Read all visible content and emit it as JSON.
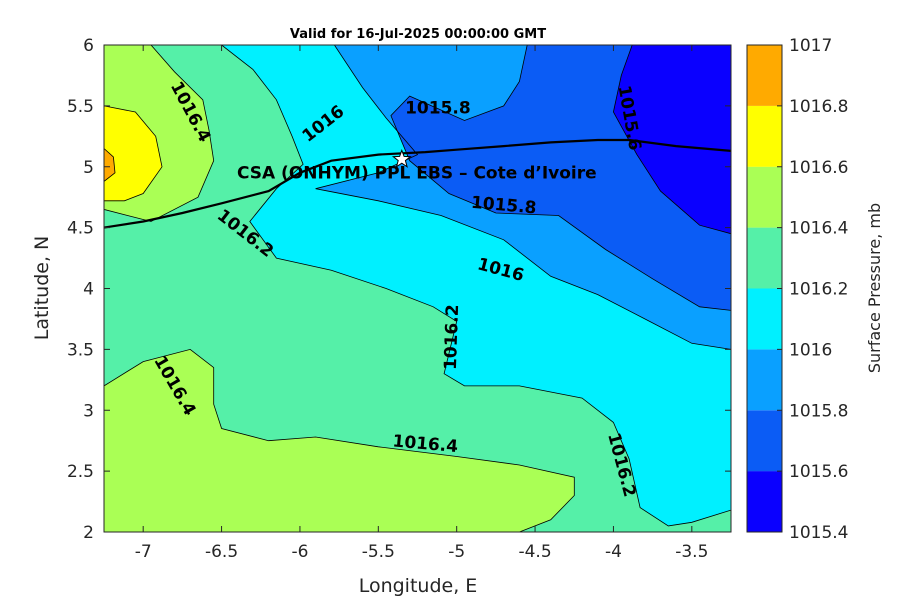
{
  "chart_data": {
    "type": "contour",
    "title": "Valid for 16-Jul-2025 00:00:00 GMT",
    "xlabel": "Longitude, E",
    "ylabel": "Latitude, N",
    "xlim": [
      -7.25,
      -3.25
    ],
    "ylim": [
      2,
      6
    ],
    "xticks": [
      -7,
      -6.5,
      -6,
      -5.5,
      -5,
      -4.5,
      -4,
      -3.5
    ],
    "xtick_labels": [
      "-7",
      "-6.5",
      "-6",
      "-5.5",
      "-5",
      "-4.5",
      "-4",
      "-3.5"
    ],
    "yticks": [
      2,
      2.5,
      3,
      3.5,
      4,
      4.5,
      5,
      5.5,
      6
    ],
    "ytick_labels": [
      "2",
      "2.5",
      "3",
      "3.5",
      "4",
      "4.5",
      "5",
      "5.5",
      "6"
    ],
    "colorbar": {
      "label": "Surface Pressure, mb",
      "levels": [
        1015.4,
        1015.6,
        1015.8,
        1016,
        1016.2,
        1016.4,
        1016.6,
        1016.8,
        1017
      ],
      "tick_labels": [
        "1015.4",
        "1015.6",
        "1015.8",
        "1016",
        "1016.2",
        "1016.4",
        "1016.6",
        "1016.8",
        "1017"
      ],
      "colors": [
        "#0a00ff",
        "#0b5cf5",
        "#0aa0ff",
        "#00f0ff",
        "#55f0a8",
        "#aaff55",
        "#ffff00",
        "#ffaa00",
        "#ff5500"
      ]
    },
    "contour_labels": [
      {
        "text": "1016.4",
        "x": -6.7,
        "y": 5.45
      },
      {
        "text": "1016",
        "x": -5.85,
        "y": 5.35
      },
      {
        "text": "1015.8",
        "x": -5.12,
        "y": 5.48
      },
      {
        "text": "1015.6",
        "x": -3.9,
        "y": 5.4
      },
      {
        "text": "1015.8",
        "x": -4.7,
        "y": 4.68
      },
      {
        "text": "1016.2",
        "x": -6.35,
        "y": 4.45
      },
      {
        "text": "1016",
        "x": -4.72,
        "y": 4.15
      },
      {
        "text": "1016.2",
        "x": -5.03,
        "y": 3.6
      },
      {
        "text": "1016.4",
        "x": -6.8,
        "y": 3.2
      },
      {
        "text": "1016.4",
        "x": -5.2,
        "y": 2.72
      },
      {
        "text": "1016.2",
        "x": -3.95,
        "y": 2.55
      }
    ],
    "site": {
      "name": "CSA (ONHYM) PPL EBS  – Cote d’Ivoire",
      "lon": -5.35,
      "lat": 5.06
    },
    "regions": [
      {
        "value": 1016.4,
        "points": [
          [
            -7.25,
            2.1
          ],
          [
            -7.25,
            3.2
          ],
          [
            -7.0,
            3.4
          ],
          [
            -6.7,
            3.5
          ],
          [
            -6.55,
            3.35
          ],
          [
            -6.55,
            3.05
          ],
          [
            -6.5,
            2.85
          ],
          [
            -6.2,
            2.75
          ],
          [
            -5.9,
            2.78
          ],
          [
            -5.5,
            2.7
          ],
          [
            -5.0,
            2.62
          ],
          [
            -4.6,
            2.55
          ],
          [
            -4.25,
            2.45
          ],
          [
            -4.25,
            2.3
          ],
          [
            -4.4,
            2.1
          ],
          [
            -4.6,
            2.0
          ],
          [
            -7.25,
            2.0
          ]
        ]
      },
      {
        "value": 1016.4,
        "points": [
          [
            -7.25,
            4.65
          ],
          [
            -7.25,
            6.0
          ],
          [
            -6.95,
            6.0
          ],
          [
            -6.8,
            5.78
          ],
          [
            -6.62,
            5.55
          ],
          [
            -6.58,
            5.3
          ],
          [
            -6.55,
            5.05
          ],
          [
            -6.65,
            4.75
          ],
          [
            -6.95,
            4.55
          ],
          [
            -7.1,
            4.6
          ]
        ]
      },
      {
        "value": 1016.6,
        "points": [
          [
            -7.25,
            4.72
          ],
          [
            -7.25,
            5.5
          ],
          [
            -7.05,
            5.45
          ],
          [
            -6.92,
            5.25
          ],
          [
            -6.88,
            5.0
          ],
          [
            -7.0,
            4.78
          ],
          [
            -7.12,
            4.72
          ]
        ]
      },
      {
        "value": 1016.8,
        "points": [
          [
            -7.25,
            4.88
          ],
          [
            -7.25,
            5.15
          ],
          [
            -7.19,
            5.08
          ],
          [
            -7.18,
            4.95
          ]
        ]
      },
      {
        "value": 1016.0,
        "points": [
          [
            -6.5,
            6.0
          ],
          [
            -6.3,
            5.8
          ],
          [
            -6.15,
            5.55
          ],
          [
            -6.05,
            5.25
          ],
          [
            -5.98,
            5.02
          ],
          [
            -6.15,
            4.82
          ],
          [
            -6.32,
            4.55
          ],
          [
            -6.15,
            4.25
          ],
          [
            -5.8,
            4.15
          ],
          [
            -5.45,
            4.0
          ],
          [
            -5.15,
            3.85
          ],
          [
            -5.0,
            3.73
          ],
          [
            -5.08,
            3.3
          ],
          [
            -4.95,
            3.2
          ],
          [
            -4.6,
            3.2
          ],
          [
            -4.2,
            3.1
          ],
          [
            -4.0,
            2.9
          ],
          [
            -3.9,
            2.6
          ],
          [
            -3.83,
            2.2
          ],
          [
            -3.65,
            2.05
          ],
          [
            -3.5,
            2.08
          ],
          [
            -3.25,
            2.18
          ],
          [
            -3.25,
            6.0
          ]
        ]
      },
      {
        "value": 1015.8,
        "points": [
          [
            -5.78,
            6.0
          ],
          [
            -5.6,
            5.65
          ],
          [
            -5.45,
            5.4
          ],
          [
            -5.25,
            5.1
          ],
          [
            -5.5,
            4.95
          ],
          [
            -5.9,
            4.82
          ],
          [
            -5.5,
            4.72
          ],
          [
            -5.1,
            4.6
          ],
          [
            -4.7,
            4.4
          ],
          [
            -4.4,
            4.1
          ],
          [
            -4.1,
            3.95
          ],
          [
            -3.8,
            3.75
          ],
          [
            -3.5,
            3.55
          ],
          [
            -3.25,
            3.5
          ],
          [
            -3.25,
            6.0
          ]
        ]
      },
      {
        "value": 1015.6,
        "points": [
          [
            -4.55,
            6.0
          ],
          [
            -4.6,
            5.7
          ],
          [
            -4.7,
            5.5
          ],
          [
            -4.95,
            5.38
          ],
          [
            -5.3,
            5.58
          ],
          [
            -5.42,
            5.42
          ],
          [
            -5.3,
            5.05
          ],
          [
            -5.05,
            4.78
          ],
          [
            -4.75,
            4.62
          ],
          [
            -4.35,
            4.6
          ],
          [
            -4.05,
            4.32
          ],
          [
            -3.75,
            4.08
          ],
          [
            -3.45,
            3.85
          ],
          [
            -3.25,
            3.82
          ],
          [
            -3.25,
            6.0
          ]
        ]
      },
      {
        "value": 1015.4,
        "points": [
          [
            -3.88,
            6.0
          ],
          [
            -3.95,
            5.75
          ],
          [
            -4.0,
            5.45
          ],
          [
            -3.85,
            5.1
          ],
          [
            -3.7,
            4.8
          ],
          [
            -3.45,
            4.52
          ],
          [
            -3.25,
            4.45
          ],
          [
            -3.25,
            6.0
          ]
        ]
      }
    ],
    "contour_lines": [
      [
        [
          -7.25,
          3.2
        ],
        [
          -7.0,
          3.4
        ],
        [
          -6.7,
          3.5
        ],
        [
          -6.55,
          3.35
        ],
        [
          -6.55,
          3.05
        ],
        [
          -6.5,
          2.85
        ],
        [
          -6.2,
          2.75
        ],
        [
          -5.9,
          2.78
        ],
        [
          -5.5,
          2.7
        ],
        [
          -5.0,
          2.62
        ],
        [
          -4.6,
          2.55
        ],
        [
          -4.25,
          2.45
        ],
        [
          -4.25,
          2.3
        ],
        [
          -4.4,
          2.1
        ],
        [
          -4.6,
          2.0
        ]
      ],
      [
        [
          -6.95,
          6.0
        ],
        [
          -6.8,
          5.78
        ],
        [
          -6.62,
          5.55
        ],
        [
          -6.58,
          5.3
        ],
        [
          -6.55,
          5.05
        ],
        [
          -6.65,
          4.75
        ],
        [
          -6.95,
          4.55
        ],
        [
          -7.1,
          4.6
        ],
        [
          -7.25,
          4.65
        ]
      ],
      [
        [
          -7.25,
          5.5
        ],
        [
          -7.05,
          5.45
        ],
        [
          -6.92,
          5.25
        ],
        [
          -6.88,
          5.0
        ],
        [
          -7.0,
          4.78
        ],
        [
          -7.12,
          4.72
        ],
        [
          -7.25,
          4.72
        ]
      ],
      [
        [
          -7.25,
          5.15
        ],
        [
          -7.19,
          5.08
        ],
        [
          -7.18,
          4.95
        ],
        [
          -7.25,
          4.88
        ]
      ],
      [
        [
          -6.5,
          6.0
        ],
        [
          -6.3,
          5.8
        ],
        [
          -6.15,
          5.55
        ],
        [
          -6.05,
          5.25
        ],
        [
          -5.98,
          5.02
        ],
        [
          -6.15,
          4.82
        ],
        [
          -6.32,
          4.55
        ],
        [
          -6.15,
          4.25
        ],
        [
          -5.8,
          4.15
        ],
        [
          -5.45,
          4.0
        ],
        [
          -5.15,
          3.85
        ],
        [
          -5.0,
          3.73
        ],
        [
          -5.08,
          3.3
        ],
        [
          -4.95,
          3.2
        ],
        [
          -4.6,
          3.2
        ],
        [
          -4.2,
          3.1
        ],
        [
          -4.0,
          2.9
        ],
        [
          -3.9,
          2.6
        ],
        [
          -3.83,
          2.2
        ],
        [
          -3.65,
          2.05
        ],
        [
          -3.5,
          2.08
        ],
        [
          -3.25,
          2.18
        ]
      ],
      [
        [
          -5.78,
          6.0
        ],
        [
          -5.6,
          5.65
        ],
        [
          -5.45,
          5.4
        ],
        [
          -5.25,
          5.1
        ],
        [
          -5.5,
          4.95
        ],
        [
          -5.9,
          4.82
        ],
        [
          -5.5,
          4.72
        ],
        [
          -5.1,
          4.6
        ],
        [
          -4.7,
          4.4
        ],
        [
          -4.4,
          4.1
        ],
        [
          -4.1,
          3.95
        ],
        [
          -3.8,
          3.75
        ],
        [
          -3.5,
          3.55
        ],
        [
          -3.25,
          3.5
        ]
      ],
      [
        [
          -4.55,
          6.0
        ],
        [
          -4.6,
          5.7
        ],
        [
          -4.7,
          5.5
        ],
        [
          -4.95,
          5.38
        ],
        [
          -5.3,
          5.58
        ],
        [
          -5.42,
          5.42
        ],
        [
          -5.3,
          5.05
        ],
        [
          -5.05,
          4.78
        ],
        [
          -4.75,
          4.62
        ],
        [
          -4.35,
          4.6
        ],
        [
          -4.05,
          4.32
        ],
        [
          -3.75,
          4.08
        ],
        [
          -3.45,
          3.85
        ],
        [
          -3.25,
          3.82
        ]
      ],
      [
        [
          -3.88,
          6.0
        ],
        [
          -3.95,
          5.75
        ],
        [
          -4.0,
          5.45
        ],
        [
          -3.85,
          5.1
        ],
        [
          -3.7,
          4.8
        ],
        [
          -3.45,
          4.52
        ],
        [
          -3.25,
          4.45
        ]
      ]
    ],
    "coastline": [
      [
        -7.25,
        4.5
      ],
      [
        -7.0,
        4.55
      ],
      [
        -6.75,
        4.62
      ],
      [
        -6.5,
        4.7
      ],
      [
        -6.2,
        4.8
      ],
      [
        -6.0,
        4.95
      ],
      [
        -5.8,
        5.05
      ],
      [
        -5.5,
        5.1
      ],
      [
        -5.2,
        5.12
      ],
      [
        -5.0,
        5.14
      ],
      [
        -4.7,
        5.17
      ],
      [
        -4.4,
        5.2
      ],
      [
        -4.1,
        5.22
      ],
      [
        -3.9,
        5.22
      ],
      [
        -3.6,
        5.17
      ],
      [
        -3.25,
        5.13
      ]
    ]
  }
}
